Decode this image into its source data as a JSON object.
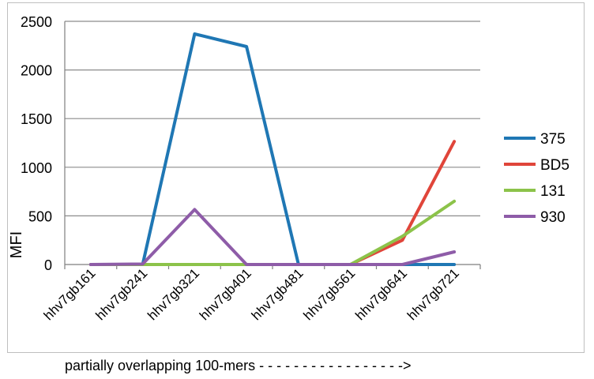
{
  "chart_data": {
    "type": "line",
    "ylabel": "MFI",
    "xlabel": "",
    "ylim": [
      0,
      2500
    ],
    "yticks": [
      0,
      500,
      1000,
      1500,
      2000,
      2500
    ],
    "grid": true,
    "legend_position": "right",
    "categories": [
      "hhv7gb161",
      "hhv7gb241",
      "hhv7gb321",
      "hhv7gb401",
      "hhv7gb481",
      "hhv7gb561",
      "hhv7gb641",
      "hhv7gb721"
    ],
    "series": [
      {
        "name": "375",
        "color": "#1f77b4",
        "values": [
          0,
          0,
          2370,
          2240,
          0,
          0,
          0,
          0
        ]
      },
      {
        "name": "BD5",
        "color": "#e0453a",
        "values": [
          0,
          0,
          0,
          0,
          0,
          0,
          250,
          1265
        ]
      },
      {
        "name": "131",
        "color": "#8cc34a",
        "values": [
          0,
          0,
          0,
          0,
          0,
          0,
          290,
          650
        ]
      },
      {
        "name": "930",
        "color": "#8e5ca8",
        "values": [
          0,
          5,
          565,
          0,
          0,
          0,
          0,
          130
        ]
      }
    ]
  },
  "footnote": "partially overlapping 100-mers - - - - - - - - - - - - - - - - ->"
}
